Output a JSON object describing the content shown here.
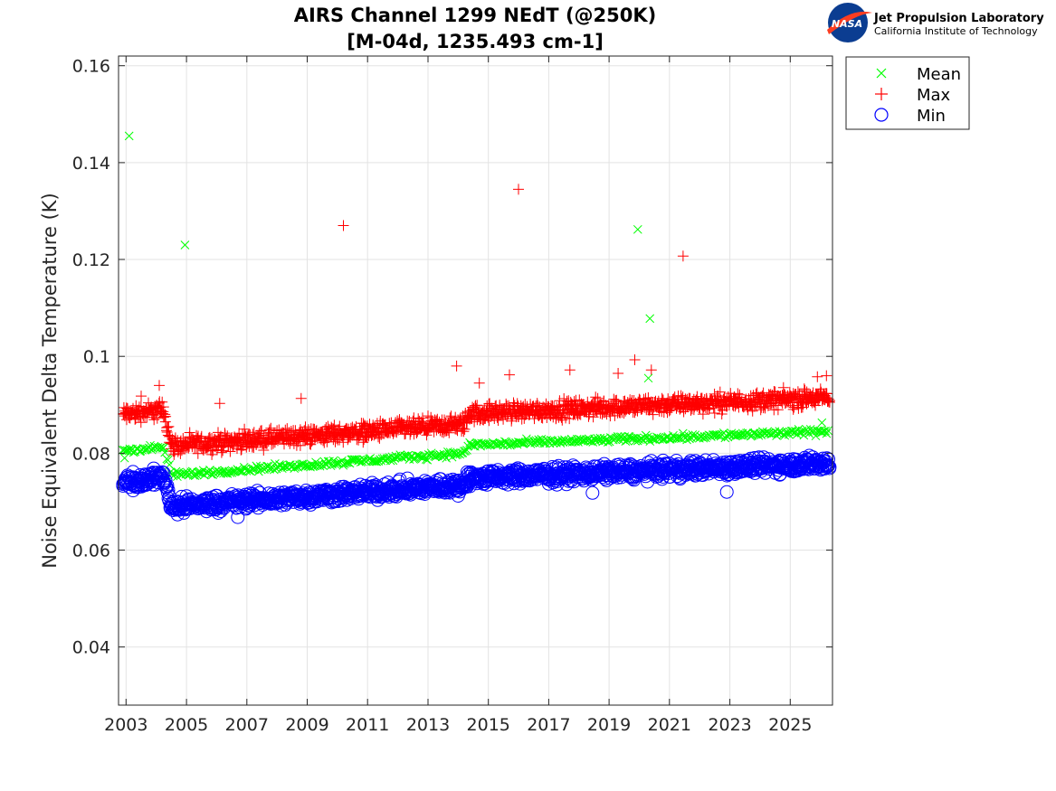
{
  "chart_data": {
    "type": "scatter",
    "title_lines": [
      "AIRS Channel 1299 NEdT (@250K)",
      "[M-04d, 1235.493 cm-1]"
    ],
    "xlabel": "",
    "ylabel": "Noise Equivalent Delta Temperature (K)",
    "xlim": [
      2002.75,
      2026.4
    ],
    "ylim": [
      0.028,
      0.162
    ],
    "x_ticks": [
      2003,
      2005,
      2007,
      2009,
      2011,
      2013,
      2015,
      2017,
      2019,
      2021,
      2023,
      2025
    ],
    "x_tick_labels": [
      "2003",
      "2005",
      "2007",
      "2009",
      "2011",
      "2013",
      "2015",
      "2017",
      "2019",
      "2021",
      "2023",
      "2025"
    ],
    "y_ticks": [
      0.04,
      0.06,
      0.08,
      0.1,
      0.12,
      0.14,
      0.16
    ],
    "y_tick_labels": [
      "0.04",
      "0.06",
      "0.08",
      "0.1",
      "0.12",
      "0.14",
      "0.16"
    ],
    "grid": true,
    "legend_position": "outside-top-right",
    "series": [
      {
        "name": "Mean",
        "marker": "x",
        "color": "#00ff00",
        "trend": [
          [
            2002.9,
            0.0805
          ],
          [
            2004.25,
            0.0812
          ],
          [
            2004.5,
            0.0755
          ],
          [
            2014.2,
            0.08
          ],
          [
            2014.35,
            0.0817
          ],
          [
            2026.3,
            0.0845
          ]
        ],
        "outliers": [
          [
            2003.1,
            0.1455
          ],
          [
            2002.95,
            0.079
          ],
          [
            2004.95,
            0.123
          ],
          [
            2019.95,
            0.1262
          ],
          [
            2020.35,
            0.1078
          ],
          [
            2020.3,
            0.0955
          ],
          [
            2026.05,
            0.0863
          ]
        ]
      },
      {
        "name": "Max",
        "marker": "+",
        "color": "#ff0000",
        "trend": [
          [
            2002.9,
            0.088
          ],
          [
            2004.25,
            0.089
          ],
          [
            2004.5,
            0.0815
          ],
          [
            2014.2,
            0.086
          ],
          [
            2014.35,
            0.0882
          ],
          [
            2026.3,
            0.0915
          ]
        ],
        "outliers": [
          [
            2010.2,
            0.127
          ],
          [
            2016.0,
            0.1345
          ],
          [
            2021.45,
            0.1207
          ],
          [
            2013.95,
            0.098
          ],
          [
            2019.85,
            0.0993
          ],
          [
            2017.7,
            0.0972
          ],
          [
            2015.7,
            0.0962
          ],
          [
            2019.3,
            0.0965
          ],
          [
            2020.4,
            0.0972
          ],
          [
            2006.1,
            0.0903
          ],
          [
            2008.8,
            0.0913
          ],
          [
            2004.1,
            0.094
          ],
          [
            2025.9,
            0.0958
          ],
          [
            2026.2,
            0.096
          ],
          [
            2014.7,
            0.0945
          ],
          [
            2003.5,
            0.0918
          ]
        ]
      },
      {
        "name": "Min",
        "marker": "o",
        "color": "#0000ff",
        "trend": [
          [
            2002.9,
            0.074
          ],
          [
            2004.25,
            0.0752
          ],
          [
            2004.5,
            0.069
          ],
          [
            2014.2,
            0.0735
          ],
          [
            2014.35,
            0.0748
          ],
          [
            2026.3,
            0.078
          ]
        ],
        "outliers": [
          [
            2006.7,
            0.0668
          ],
          [
            2018.45,
            0.0718
          ],
          [
            2022.9,
            0.072
          ],
          [
            2014.0,
            0.0712
          ]
        ]
      }
    ]
  },
  "logo": {
    "agency_text": "NASA",
    "lab_name": "Jet Propulsion Laboratory",
    "lab_subtitle": "California Institute of Technology"
  }
}
